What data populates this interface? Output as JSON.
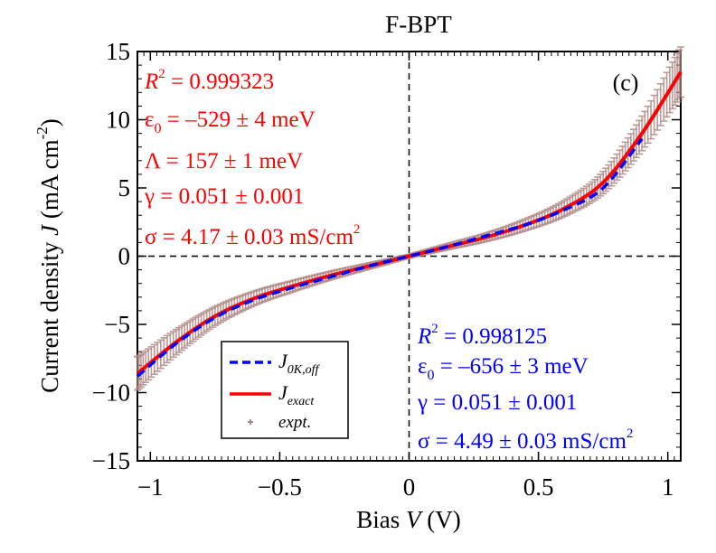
{
  "chart_data": {
    "type": "line",
    "title": "F-BPT",
    "panel_label": "(c)",
    "xlabel": {
      "text": "Bias ",
      "symbol": "V",
      "unit": " (V)"
    },
    "ylabel": {
      "text": "Current density ",
      "symbol": "J",
      "unit": " (mA cm",
      "sup": "-2",
      "close": ")"
    },
    "xlim": [
      -1.05,
      1.05
    ],
    "ylim": [
      -15,
      15
    ],
    "x_ticks": [
      -1,
      -0.5,
      0,
      0.5,
      1
    ],
    "x_tick_labels": [
      "−1",
      "−0.5",
      "0",
      "0.5",
      "1"
    ],
    "y_ticks": [
      -15,
      -10,
      -5,
      0,
      5,
      10,
      15
    ],
    "y_tick_labels": [
      "−15",
      "−10",
      "−5",
      "0",
      "5",
      "10",
      "15"
    ],
    "reference_lines": [
      {
        "axis": "x",
        "value": 0,
        "style": "dashed"
      },
      {
        "axis": "y",
        "value": 0,
        "style": "dashed"
      }
    ],
    "series": [
      {
        "name": "expt.",
        "style": "markers",
        "color": "#b08a86",
        "x": [
          -1.05,
          -0.9,
          -0.75,
          -0.6,
          -0.45,
          -0.3,
          -0.15,
          0,
          0.15,
          0.3,
          0.45,
          0.6,
          0.75,
          0.9,
          1.05
        ],
        "y": [
          -8.6,
          -6.3,
          -4.4,
          -3.1,
          -2.2,
          -1.4,
          -0.7,
          0.0,
          0.7,
          1.4,
          2.3,
          3.5,
          5.4,
          9.0,
          13.5
        ]
      },
      {
        "name": "J_exact",
        "label_main": "J",
        "label_sub": "exact",
        "style": "solid",
        "color": "#ff0000",
        "x": [
          -1.05,
          -0.9,
          -0.75,
          -0.6,
          -0.45,
          -0.3,
          -0.15,
          0,
          0.15,
          0.3,
          0.45,
          0.6,
          0.75,
          0.9,
          1.05
        ],
        "y": [
          -8.6,
          -6.3,
          -4.4,
          -3.1,
          -2.2,
          -1.4,
          -0.7,
          0.0,
          0.7,
          1.4,
          2.3,
          3.5,
          5.4,
          9.0,
          13.5
        ]
      },
      {
        "name": "J_0K,off",
        "label_main": "J",
        "label_sub": "0K,off",
        "style": "dashed",
        "color": "#0000ff",
        "x": [
          -1.05,
          -0.9,
          -0.75,
          -0.6,
          -0.45,
          -0.3,
          -0.15,
          0,
          0.15,
          0.3,
          0.45,
          0.6,
          0.75,
          0.9
        ],
        "y": [
          -8.8,
          -6.4,
          -4.5,
          -3.2,
          -2.3,
          -1.5,
          -0.7,
          0.0,
          0.7,
          1.5,
          2.3,
          3.4,
          5.0,
          8.6
        ]
      }
    ],
    "legend_position": "lower-left",
    "annotations": {
      "red": {
        "color": "#ff0000",
        "r2": {
          "label": "R",
          "sup": "2",
          "value": " = 0.999323"
        },
        "eps": {
          "label": "ε",
          "sub": "0",
          "value": " = –529 ± 4 meV"
        },
        "lambda": {
          "text": "Λ = 157 ± 1 meV"
        },
        "gamma": {
          "text": "γ = 0.051 ± 0.001"
        },
        "sigma": {
          "text": "σ = 4.17 ± 0.03 mS/cm",
          "sup": "2"
        }
      },
      "blue": {
        "color": "#0000ff",
        "r2": {
          "label": "R",
          "sup": "2",
          "value": " = 0.998125"
        },
        "eps": {
          "label": "ε",
          "sub": "0",
          "value": " = –656 ± 3 meV"
        },
        "gamma": {
          "text": "γ = 0.051 ± 0.001"
        },
        "sigma": {
          "text": "σ = 4.49 ± 0.03 mS/cm",
          "sup": "2"
        }
      }
    }
  }
}
